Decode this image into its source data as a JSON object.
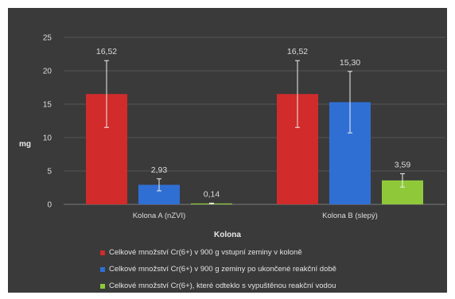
{
  "colors": {
    "background_outer": "#ffffff",
    "chart_bg": "#3a3a3a",
    "grid": "#555555",
    "text": "#dcdcdc"
  },
  "chart_data": {
    "type": "bar",
    "title": "",
    "xlabel": "Kolona",
    "ylabel": "mg",
    "ylim": [
      0,
      25
    ],
    "yticks": [
      0,
      5,
      10,
      15,
      20,
      25
    ],
    "grid": true,
    "legend_position": "bottom",
    "categories": [
      "Kolona A (nZVI)",
      "Kolona B (slepý)"
    ],
    "series": [
      {
        "name": "Celkové množství Cr(6+) v 900 g vstupní zeminy v koloně",
        "color": "#d22b2b",
        "values": [
          16.52,
          16.52
        ],
        "labels": [
          "16,52",
          "16,52"
        ],
        "errors": [
          5.0,
          5.0
        ]
      },
      {
        "name": "Celkové množství Cr(6+) v 900 g zeminy po ukončené reakční době",
        "color": "#2f6fd4",
        "values": [
          2.93,
          15.3
        ],
        "labels": [
          "2,93",
          "15,30"
        ],
        "errors": [
          0.9,
          4.6
        ]
      },
      {
        "name": "Celkové množství Cr(6+), které odteklo s vypuštěnou reakční vodou",
        "color": "#8fc93a",
        "values": [
          0.14,
          3.59
        ],
        "labels": [
          "0,14",
          "3,59"
        ],
        "errors": [
          0.05,
          1.0
        ]
      }
    ]
  }
}
